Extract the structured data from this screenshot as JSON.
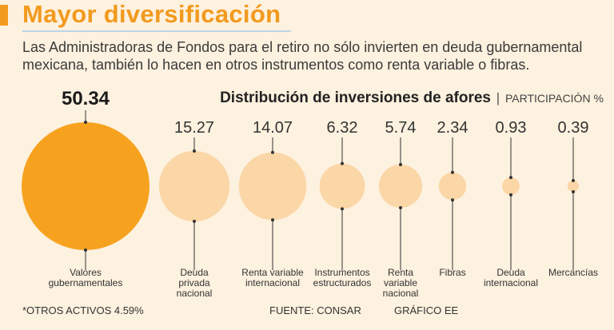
{
  "header": {
    "title": "Mayor diversificación",
    "deck": "Las Administradoras de Fondos para el retiro no sólo invierten en deuda gubernamental mexicana, también lo hacen en otros instrumentos como renta variable o fibras."
  },
  "chart_data": {
    "type": "bubble",
    "title": "Distribución de inversiones de afores",
    "unit_label": "PARTICIPACIÓN %",
    "categories": [
      [
        "Valores",
        "gubernamentales"
      ],
      [
        "Deuda",
        "privada",
        "nacional"
      ],
      [
        "Renta variable",
        "internacional"
      ],
      [
        "Instrumentos",
        "estructurados"
      ],
      [
        "Renta",
        "variable",
        "nacional"
      ],
      [
        "Fibras"
      ],
      [
        "Deuda",
        "internacional"
      ],
      [
        "Mercancías"
      ]
    ],
    "values": [
      50.34,
      15.27,
      14.07,
      6.32,
      5.74,
      2.34,
      0.93,
      0.39
    ],
    "value_labels": [
      "50.34",
      "15.27",
      "14.07",
      "6.32",
      "5.74",
      "2.34",
      "0.93",
      "0.39"
    ],
    "colors": {
      "highlight": "#f7a21f",
      "bubble": "#fbd6a6",
      "line": "#333333"
    }
  },
  "footer": {
    "note": "*OTROS ACTIVOS 4.59%",
    "source": "FUENTE: CONSAR",
    "credit": "GRÁFICO EE"
  }
}
